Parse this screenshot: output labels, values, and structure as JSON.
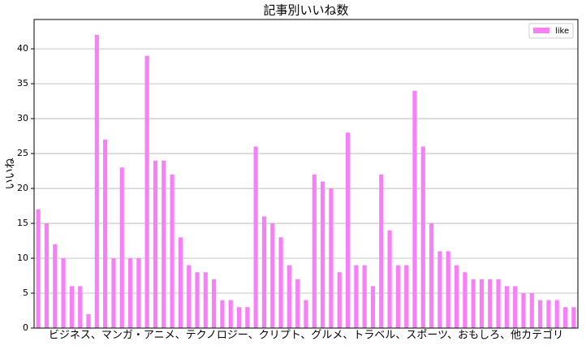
{
  "chart_data": {
    "type": "bar",
    "title": "記事別いいね数",
    "x_label": "ビジネス、マンガ・アニメ、テクノロジー、クリプト、グルメ、トラベル、スポーツ、おもしろ、他カテゴリ",
    "y_label": "いいね",
    "categories": [
      null,
      null,
      null,
      null,
      null,
      null,
      null,
      null,
      null,
      null,
      null,
      null,
      null,
      null,
      null,
      null,
      null,
      null,
      null,
      null,
      null,
      null,
      null,
      null,
      null,
      null,
      null,
      null,
      null,
      null,
      null,
      null,
      null,
      null,
      null,
      null,
      null,
      null,
      null,
      null,
      null,
      null,
      null,
      null,
      null,
      null,
      null,
      null,
      null,
      null,
      null,
      null,
      null,
      null,
      null,
      null,
      null,
      null,
      null,
      null,
      null,
      null,
      null,
      null,
      null
    ],
    "series": [
      {
        "name": "like",
        "color": "#f77ff7",
        "values": [
          17,
          15,
          12,
          10,
          6,
          6,
          2,
          42,
          27,
          10,
          23,
          10,
          10,
          39,
          24,
          24,
          22,
          13,
          9,
          8,
          8,
          7,
          4,
          4,
          3,
          3,
          26,
          16,
          15,
          13,
          9,
          7,
          4,
          22,
          21,
          20,
          8,
          28,
          9,
          9,
          6,
          22,
          14,
          9,
          9,
          34,
          26,
          15,
          11,
          11,
          9,
          8,
          7,
          7,
          7,
          7,
          6,
          6,
          5,
          5,
          4,
          4,
          4,
          3,
          3
        ]
      }
    ],
    "ylim": [
      0,
      44.2
    ],
    "yticks": [
      0,
      5,
      10,
      15,
      20,
      25,
      30,
      35,
      40
    ],
    "grid": true,
    "legend": "upper right"
  }
}
